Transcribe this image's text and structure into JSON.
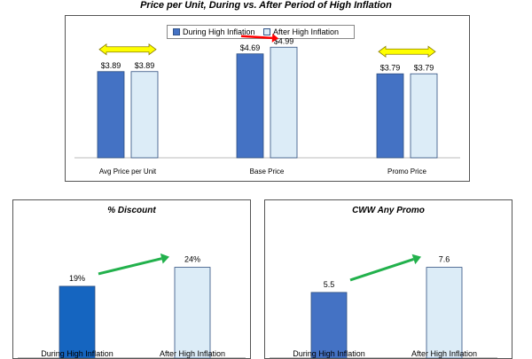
{
  "page_title": "Price per Unit, During vs. After Period of High Inflation",
  "colors": {
    "during": "#4472c4",
    "during_discount": "#1565c0",
    "after": "#dcecf7",
    "bar_border": "#2f4f7f",
    "flat_arrow": "#ffff00",
    "down_arrow": "#ff0000",
    "up_arrow": "#22b14c"
  },
  "chart_data": [
    {
      "type": "bar",
      "title": "",
      "categories": [
        "Avg Price per Unit",
        "Base Price",
        "Promo Price"
      ],
      "series": [
        {
          "name": "During High Inflation",
          "values": [
            3.89,
            4.69,
            3.79
          ],
          "labels": [
            "$3.89",
            "$4.69",
            "$3.79"
          ]
        },
        {
          "name": "After High Inflation",
          "values": [
            3.89,
            4.99,
            3.79
          ],
          "labels": [
            "$3.89",
            "$4.99",
            "$3.79"
          ]
        }
      ],
      "ylim": [
        0,
        5.2
      ],
      "grid": false,
      "legend": "top-center",
      "arrows": [
        "flat",
        "up-red",
        "flat"
      ]
    },
    {
      "type": "bar",
      "title": "% Discount",
      "categories": [
        "During High Inflation",
        "After High Inflation"
      ],
      "values": [
        19,
        24
      ],
      "labels": [
        "19%",
        "24%"
      ],
      "ylim": [
        0,
        30
      ],
      "grid": false
    },
    {
      "type": "bar",
      "title": "CWW Any Promo",
      "categories": [
        "During High Inflation",
        "After High Inflation"
      ],
      "values": [
        5.5,
        7.6
      ],
      "labels": [
        "5.5",
        "7.6"
      ],
      "ylim": [
        0,
        9.5
      ],
      "grid": false
    }
  ]
}
